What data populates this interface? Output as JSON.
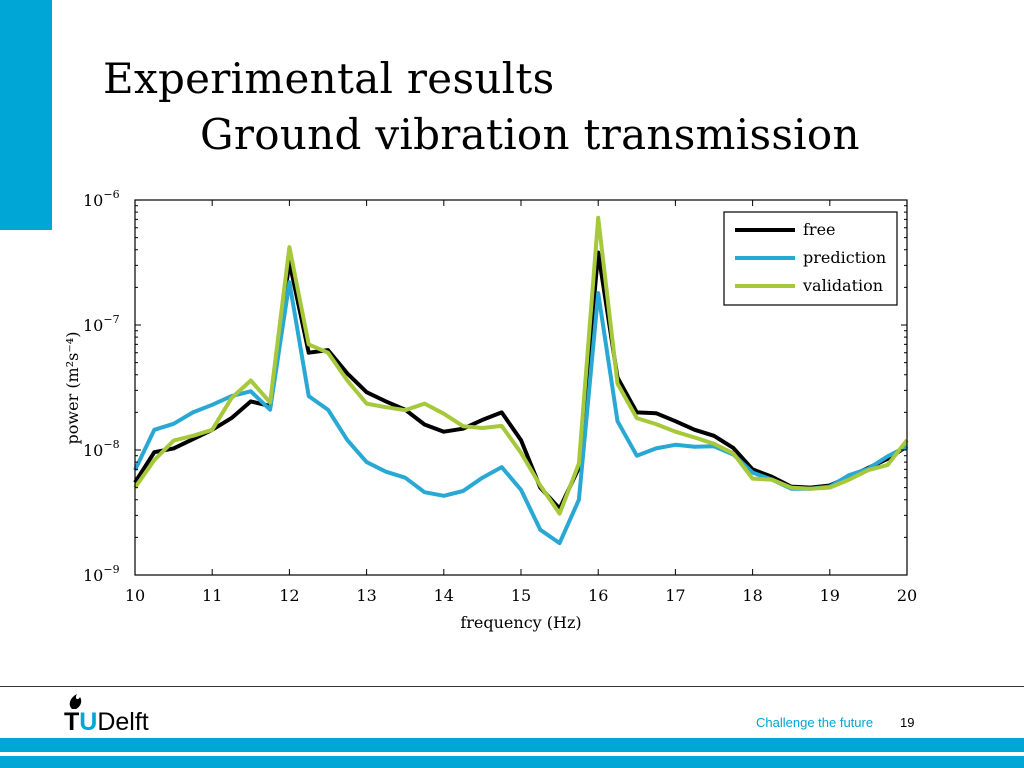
{
  "slide": {
    "title": "Experimental results",
    "subtitle": "Ground vibration transmission",
    "tagline": "Challenge the future",
    "page_number": "19",
    "logo_text": "TUDelft",
    "accent_color": "#00a6d6"
  },
  "chart_data": {
    "type": "line",
    "xlabel": "frequency (Hz)",
    "ylabel": "power (m²s⁻⁴)",
    "xlim": [
      10,
      20
    ],
    "ylim": [
      1e-09,
      1e-06
    ],
    "yscale": "log",
    "grid": false,
    "legend_position": "top-right",
    "x_ticks": [
      10,
      11,
      12,
      13,
      14,
      15,
      16,
      17,
      18,
      19,
      20
    ],
    "y_ticks": [
      {
        "value": 1e-09,
        "base": "10",
        "exp": "−9"
      },
      {
        "value": 1e-08,
        "base": "10",
        "exp": "−8"
      },
      {
        "value": 1e-07,
        "base": "10",
        "exp": "−7"
      },
      {
        "value": 1e-06,
        "base": "10",
        "exp": "−6"
      }
    ],
    "x": [
      10,
      10.25,
      10.5,
      10.75,
      11,
      11.25,
      11.5,
      11.75,
      12,
      12.25,
      12.5,
      12.75,
      13,
      13.25,
      13.5,
      13.75,
      14,
      14.25,
      14.5,
      14.75,
      15,
      15.25,
      15.5,
      15.75,
      16,
      16.25,
      16.5,
      16.75,
      17,
      17.25,
      17.5,
      17.75,
      18,
      18.25,
      18.5,
      18.75,
      19,
      19.25,
      19.5,
      19.75,
      20
    ],
    "series": [
      {
        "name": "free",
        "color": "#000000",
        "values": [
          5.5e-09,
          9.6e-09,
          1.03e-08,
          1.22e-08,
          1.45e-08,
          1.8e-08,
          2.45e-08,
          2.25e-08,
          3.2e-07,
          6e-08,
          6.3e-08,
          4.1e-08,
          2.9e-08,
          2.45e-08,
          2.1e-08,
          1.6e-08,
          1.4e-08,
          1.48e-08,
          1.74e-08,
          2e-08,
          1.2e-08,
          5e-09,
          3.4e-09,
          7.2e-09,
          3.8e-07,
          3.8e-08,
          2e-08,
          1.97e-08,
          1.7e-08,
          1.45e-08,
          1.3e-08,
          1.04e-08,
          7e-09,
          6.1e-09,
          5.1e-09,
          5e-09,
          5.2e-09,
          6.1e-09,
          7.2e-09,
          8.5e-09,
          1.07e-08
        ]
      },
      {
        "name": "prediction",
        "color": "#29a8d4",
        "values": [
          6.9e-09,
          1.45e-08,
          1.62e-08,
          2e-08,
          2.3e-08,
          2.7e-08,
          2.95e-08,
          2.1e-08,
          2.2e-07,
          2.7e-08,
          2.1e-08,
          1.2e-08,
          8e-09,
          6.7e-09,
          6e-09,
          4.6e-09,
          4.3e-09,
          4.7e-09,
          6e-09,
          7.3e-09,
          4.8e-09,
          2.3e-09,
          1.8e-09,
          4e-09,
          1.8e-07,
          1.7e-08,
          9e-09,
          1.03e-08,
          1.1e-08,
          1.06e-08,
          1.07e-08,
          9.2e-09,
          6.6e-09,
          5.8e-09,
          4.9e-09,
          4.9e-09,
          5.1e-09,
          6.3e-09,
          7.1e-09,
          8.9e-09,
          1.07e-08
        ]
      },
      {
        "name": "validation",
        "color": "#a6c83b",
        "values": [
          5e-09,
          8.3e-09,
          1.19e-08,
          1.3e-08,
          1.45e-08,
          2.6e-08,
          3.6e-08,
          2.4e-08,
          4.2e-07,
          7e-08,
          6e-08,
          3.6e-08,
          2.35e-08,
          2.2e-08,
          2.08e-08,
          2.35e-08,
          1.95e-08,
          1.55e-08,
          1.5e-08,
          1.56e-08,
          9.5e-09,
          5.2e-09,
          3.1e-09,
          7.8e-09,
          7.2e-07,
          3.4e-08,
          1.8e-08,
          1.61e-08,
          1.4e-08,
          1.26e-08,
          1.12e-08,
          9.4e-09,
          5.9e-09,
          5.8e-09,
          5e-09,
          4.9e-09,
          5e-09,
          5.8e-09,
          6.9e-09,
          7.6e-09,
          1.2e-08
        ]
      }
    ]
  }
}
